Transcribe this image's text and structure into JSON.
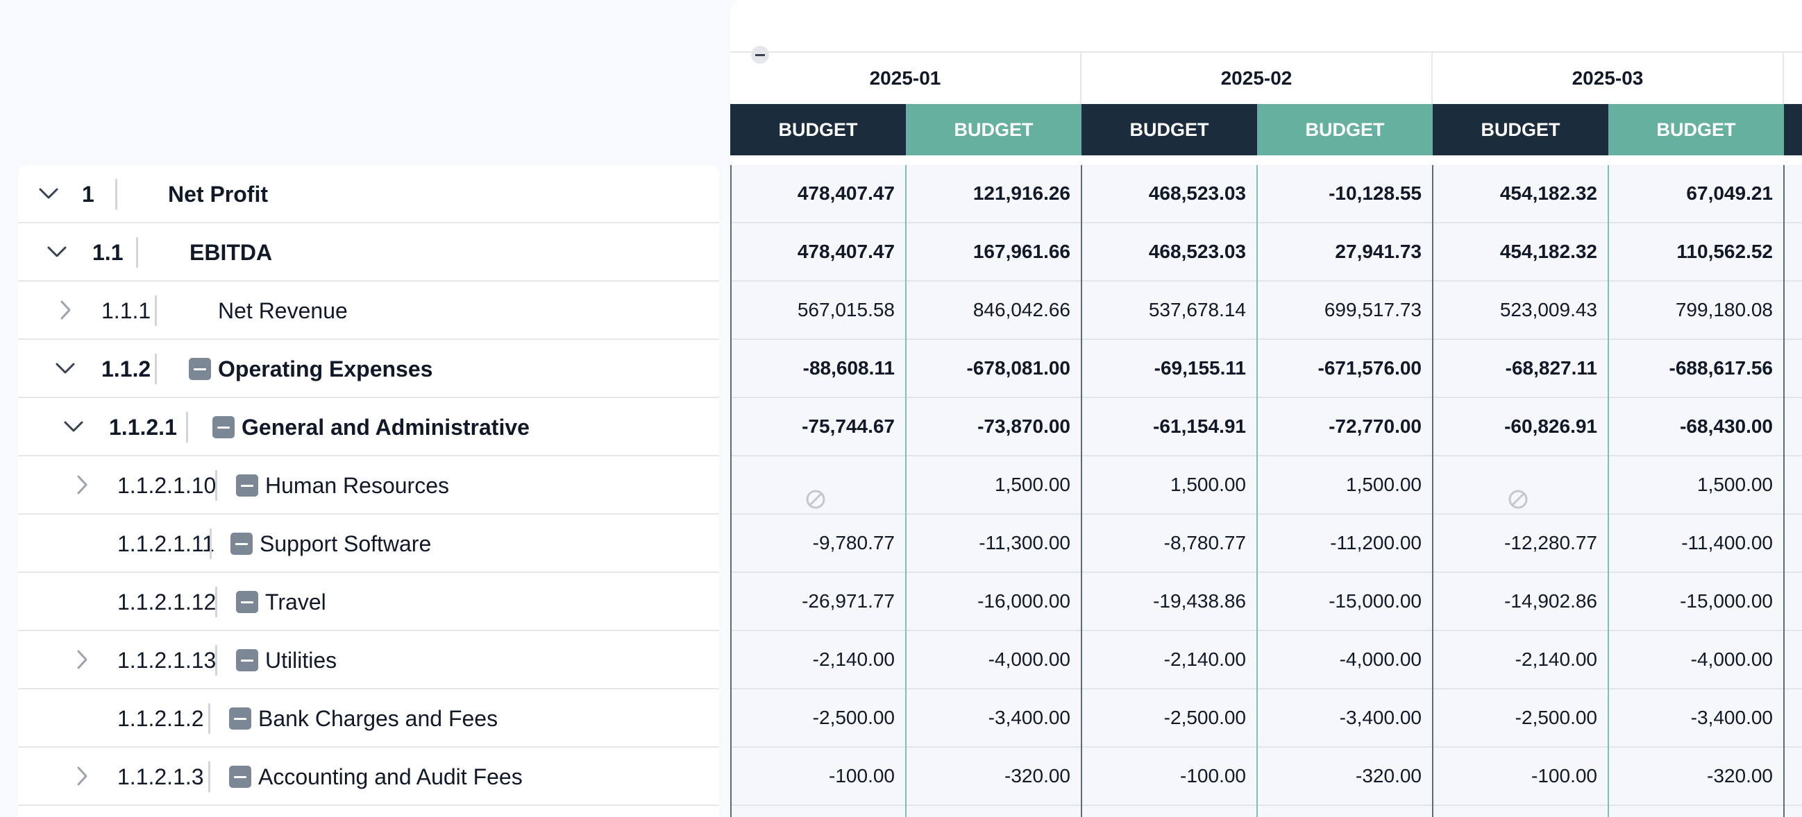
{
  "months": [
    "2025-01",
    "2025-02",
    "2025-03"
  ],
  "column_label": "BUDGET",
  "colors": {
    "dark_header": "#1b2d3c",
    "teal_header": "#66b0a0"
  },
  "rows": [
    {
      "code": "1",
      "name": "Net Profit",
      "level": 0,
      "chevron": "down",
      "minus": false,
      "bold": true,
      "values": [
        "478,407.47",
        "121,916.26",
        "468,523.03",
        "-10,128.55",
        "454,182.32",
        "67,049.21"
      ]
    },
    {
      "code": "1.1",
      "name": "EBITDA",
      "level": 1,
      "chevron": "down",
      "minus": false,
      "bold": true,
      "values": [
        "478,407.47",
        "167,961.66",
        "468,523.03",
        "27,941.73",
        "454,182.32",
        "110,562.52"
      ]
    },
    {
      "code": "1.1.1",
      "name": "Net Revenue",
      "level": 2,
      "chevron": "right",
      "minus": false,
      "bold": false,
      "values": [
        "567,015.58",
        "846,042.66",
        "537,678.14",
        "699,517.73",
        "523,009.43",
        "799,180.08"
      ]
    },
    {
      "code": "1.1.2",
      "name": "Operating Expenses",
      "level": 2,
      "chevron": "down",
      "minus": true,
      "bold": true,
      "values": [
        "-88,608.11",
        "-678,081.00",
        "-69,155.11",
        "-671,576.00",
        "-68,827.11",
        "-688,617.56"
      ]
    },
    {
      "code": "1.1.2.1",
      "name": "General and Administrative",
      "level": 3,
      "chevron": "down",
      "minus": true,
      "bold": true,
      "values": [
        "-75,744.67",
        "-73,870.00",
        "-61,154.91",
        "-72,770.00",
        "-60,826.91",
        "-68,430.00"
      ]
    },
    {
      "code": "1.1.2.1.10",
      "name": "Human Resources",
      "level": 4,
      "chevron": "right",
      "minus": true,
      "bold": false,
      "values": [
        null,
        "1,500.00",
        "1,500.00",
        "1,500.00",
        null,
        "1,500.00"
      ]
    },
    {
      "code": "1.1.2.1.11",
      "name": "Support Software",
      "level": 4,
      "chevron": "none",
      "minus": true,
      "bold": false,
      "values": [
        "-9,780.77",
        "-11,300.00",
        "-8,780.77",
        "-11,200.00",
        "-12,280.77",
        "-11,400.00"
      ]
    },
    {
      "code": "1.1.2.1.12",
      "name": "Travel",
      "level": 4,
      "chevron": "none",
      "minus": true,
      "bold": false,
      "values": [
        "-26,971.77",
        "-16,000.00",
        "-19,438.86",
        "-15,000.00",
        "-14,902.86",
        "-15,000.00"
      ]
    },
    {
      "code": "1.1.2.1.13",
      "name": "Utilities",
      "level": 4,
      "chevron": "right",
      "minus": true,
      "bold": false,
      "values": [
        "-2,140.00",
        "-4,000.00",
        "-2,140.00",
        "-4,000.00",
        "-2,140.00",
        "-4,000.00"
      ]
    },
    {
      "code": "1.1.2.1.2",
      "name": "Bank Charges and Fees",
      "level": 4,
      "chevron": "none",
      "minus": true,
      "bold": false,
      "values": [
        "-2,500.00",
        "-3,400.00",
        "-2,500.00",
        "-3,400.00",
        "-2,500.00",
        "-3,400.00"
      ]
    },
    {
      "code": "1.1.2.1.3",
      "name": "Accounting and Audit Fees",
      "level": 4,
      "chevron": "right",
      "minus": true,
      "bold": false,
      "values": [
        "-100.00",
        "-320.00",
        "-100.00",
        "-320.00",
        "-100.00",
        "-320.00"
      ]
    }
  ]
}
